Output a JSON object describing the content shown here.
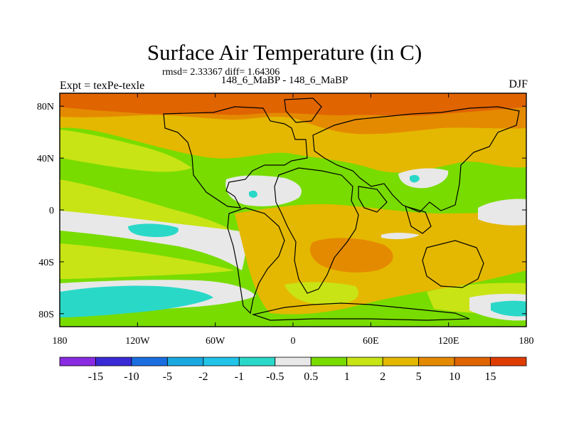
{
  "header": {
    "title": "Surface Air Temperature (in C)",
    "stats": "rmsd= 2.33367 diff= 1.64306",
    "subtitle": "148_6_MaBP - 148_6_MaBP",
    "experiment": "Expt = texPe-texle",
    "season": "DJF"
  },
  "axes": {
    "x_ticks": [
      "180",
      "120W",
      "60W",
      "0",
      "60E",
      "120E",
      "180"
    ],
    "y_ticks": [
      "80N",
      "40N",
      "0",
      "40S",
      "80S"
    ]
  },
  "colorbar": {
    "colors": [
      "#8a2be2",
      "#3a2ad6",
      "#1a6ee0",
      "#1aa8e0",
      "#22c4e8",
      "#2ad8c8",
      "#e8e8e8",
      "#78dc00",
      "#c8e414",
      "#e4b800",
      "#e48a00",
      "#e06400",
      "#e03c00"
    ],
    "labels": [
      "-15",
      "-10",
      "-5",
      "-2",
      "-1",
      "-0.5",
      "0.5",
      "1",
      "2",
      "5",
      "10",
      "15"
    ]
  },
  "palette": {
    "white": "#e8e8e8",
    "cyan": "#2ad8c8",
    "green": "#78dc00",
    "yellowgreen": "#c8e414",
    "yellow": "#e4b800",
    "orange": "#e48a00",
    "darkorange": "#e06400"
  }
}
